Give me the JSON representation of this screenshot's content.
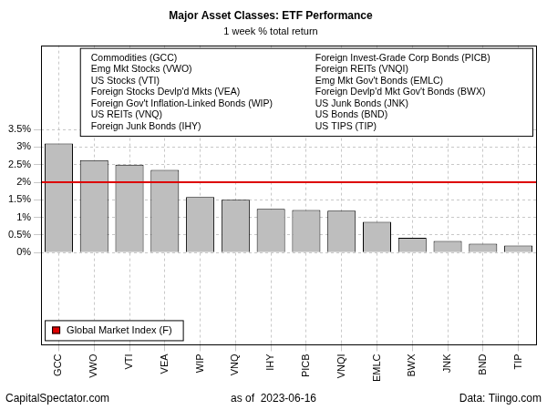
{
  "chart_data": {
    "type": "bar",
    "title": "Major Asset Classes: ETF Performance",
    "subtitle": "1 week % total return",
    "categories": [
      "GCC",
      "VWO",
      "VTI",
      "VEA",
      "WIP",
      "VNQ",
      "IHY",
      "PICB",
      "VNQI",
      "EMLC",
      "BWX",
      "JNK",
      "BND",
      "TIP"
    ],
    "values": [
      3.1,
      2.63,
      2.5,
      2.35,
      1.58,
      1.5,
      1.24,
      1.21,
      1.19,
      0.87,
      0.42,
      0.33,
      0.25,
      0.2
    ],
    "color": "#bebebe",
    "ylim": [
      -2.6,
      5.9
    ],
    "yticks": [
      {
        "value": 0,
        "label": "0%"
      },
      {
        "value": 0.5,
        "label": "0.5%"
      },
      {
        "value": 1,
        "label": "1%"
      },
      {
        "value": 1.5,
        "label": "1.5%"
      },
      {
        "value": 2,
        "label": "2%"
      },
      {
        "value": 2.5,
        "label": "2.5%"
      },
      {
        "value": 3,
        "label": "3%"
      },
      {
        "value": 3.5,
        "label": "3.5%"
      }
    ],
    "grid": true,
    "legend": "lower left",
    "annotations": [
      "Commodities (GCC)",
      "Emg Mkt Stocks (VWO)",
      "US Stocks (VTI)",
      "Foreign Stocks Devlp'd Mkts (VEA)",
      "Foreign Gov't Inflation-Linked Bonds (WIP)",
      "US REITs (VNQ)",
      "Foreign Junk Bonds (IHY)",
      "Foreign Invest-Grade Corp Bonds (PICB)",
      "Foreign REITs (VNQI)",
      "Emg Mkt Gov't Bonds (EMLC)",
      "Foreign Devlp'd Mkt Gov't Bonds (BWX)",
      "US Junk Bonds (JNK)",
      "US Bonds (BND)",
      "US TIPS (TIP)"
    ],
    "reference_line": {
      "name": "Global Market Index (F)",
      "value": 2.0,
      "color": "#dd0000"
    },
    "footer": [
      "CapitalSpectator.com",
      "as of  2023-06-16",
      "Data: Tiingo.com"
    ]
  }
}
